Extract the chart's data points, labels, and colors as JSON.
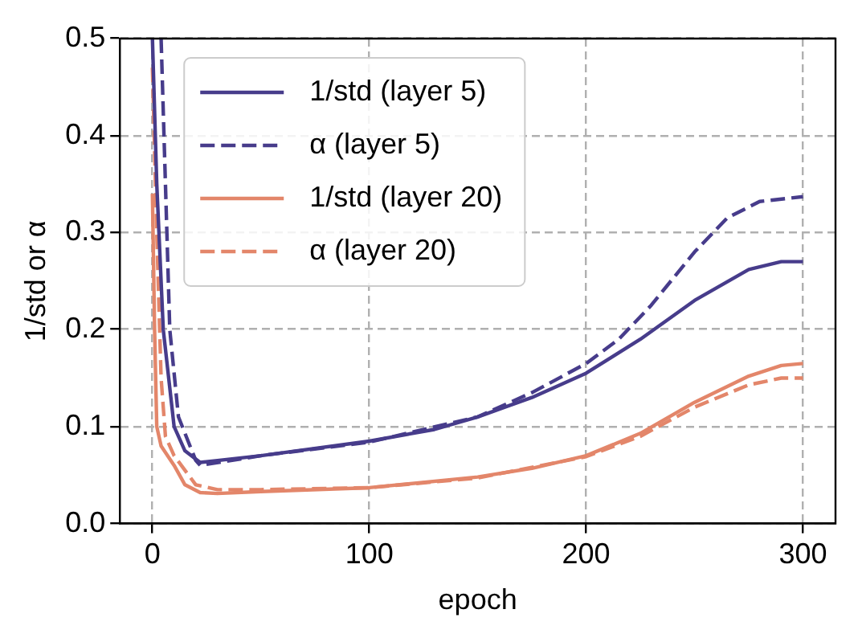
{
  "chart_data": {
    "type": "line",
    "xlabel": "epoch",
    "ylabel": "1/std or α",
    "xlim": [
      -15,
      315
    ],
    "ylim": [
      0,
      0.5
    ],
    "xticks": [
      0,
      100,
      200,
      300
    ],
    "yticks": [
      {
        "value": 0,
        "label": "0.0"
      },
      0.1,
      0.2,
      0.3,
      0.4,
      0.5
    ],
    "grid": true,
    "legend": "top left",
    "marker": "none",
    "series": [
      {
        "name": "1/std (layer 5)",
        "color": "#473c8b",
        "line_style": "solid",
        "x": [
          0,
          2,
          5,
          10,
          15,
          22,
          30,
          50,
          100,
          130,
          150,
          175,
          200,
          225,
          250,
          275,
          290,
          300
        ],
        "values": [
          0.5,
          0.35,
          0.2,
          0.1,
          0.075,
          0.063,
          0.065,
          0.07,
          0.085,
          0.097,
          0.11,
          0.13,
          0.155,
          0.19,
          0.23,
          0.262,
          0.27,
          0.27
        ]
      },
      {
        "name": "α (layer 5)",
        "color": "#473c8b",
        "line_style": "dashed",
        "x": [
          4,
          6,
          8,
          12,
          20,
          22,
          50,
          100,
          150,
          175,
          200,
          215,
          230,
          250,
          265,
          280,
          300
        ],
        "values": [
          0.5,
          0.35,
          0.2,
          0.11,
          0.065,
          0.06,
          0.07,
          0.084,
          0.11,
          0.135,
          0.165,
          0.19,
          0.225,
          0.28,
          0.315,
          0.332,
          0.337
        ]
      },
      {
        "name": "1/std (layer 20)",
        "color": "#e3866a",
        "line_style": "solid",
        "x": [
          0,
          1,
          2,
          4,
          10,
          15,
          22,
          30,
          50,
          100,
          150,
          175,
          200,
          225,
          250,
          275,
          290,
          300
        ],
        "values": [
          0.34,
          0.2,
          0.1,
          0.08,
          0.06,
          0.04,
          0.032,
          0.031,
          0.033,
          0.037,
          0.048,
          0.057,
          0.07,
          0.093,
          0.125,
          0.152,
          0.163,
          0.165
        ]
      },
      {
        "name": "α (layer 20)",
        "color": "#e3866a",
        "line_style": "dashed",
        "x": [
          0,
          2,
          4,
          6,
          10,
          20,
          30,
          50,
          100,
          150,
          200,
          225,
          250,
          275,
          290,
          300
        ],
        "values": [
          0.47,
          0.3,
          0.15,
          0.09,
          0.07,
          0.04,
          0.035,
          0.035,
          0.037,
          0.047,
          0.069,
          0.09,
          0.12,
          0.143,
          0.15,
          0.15
        ]
      }
    ]
  }
}
